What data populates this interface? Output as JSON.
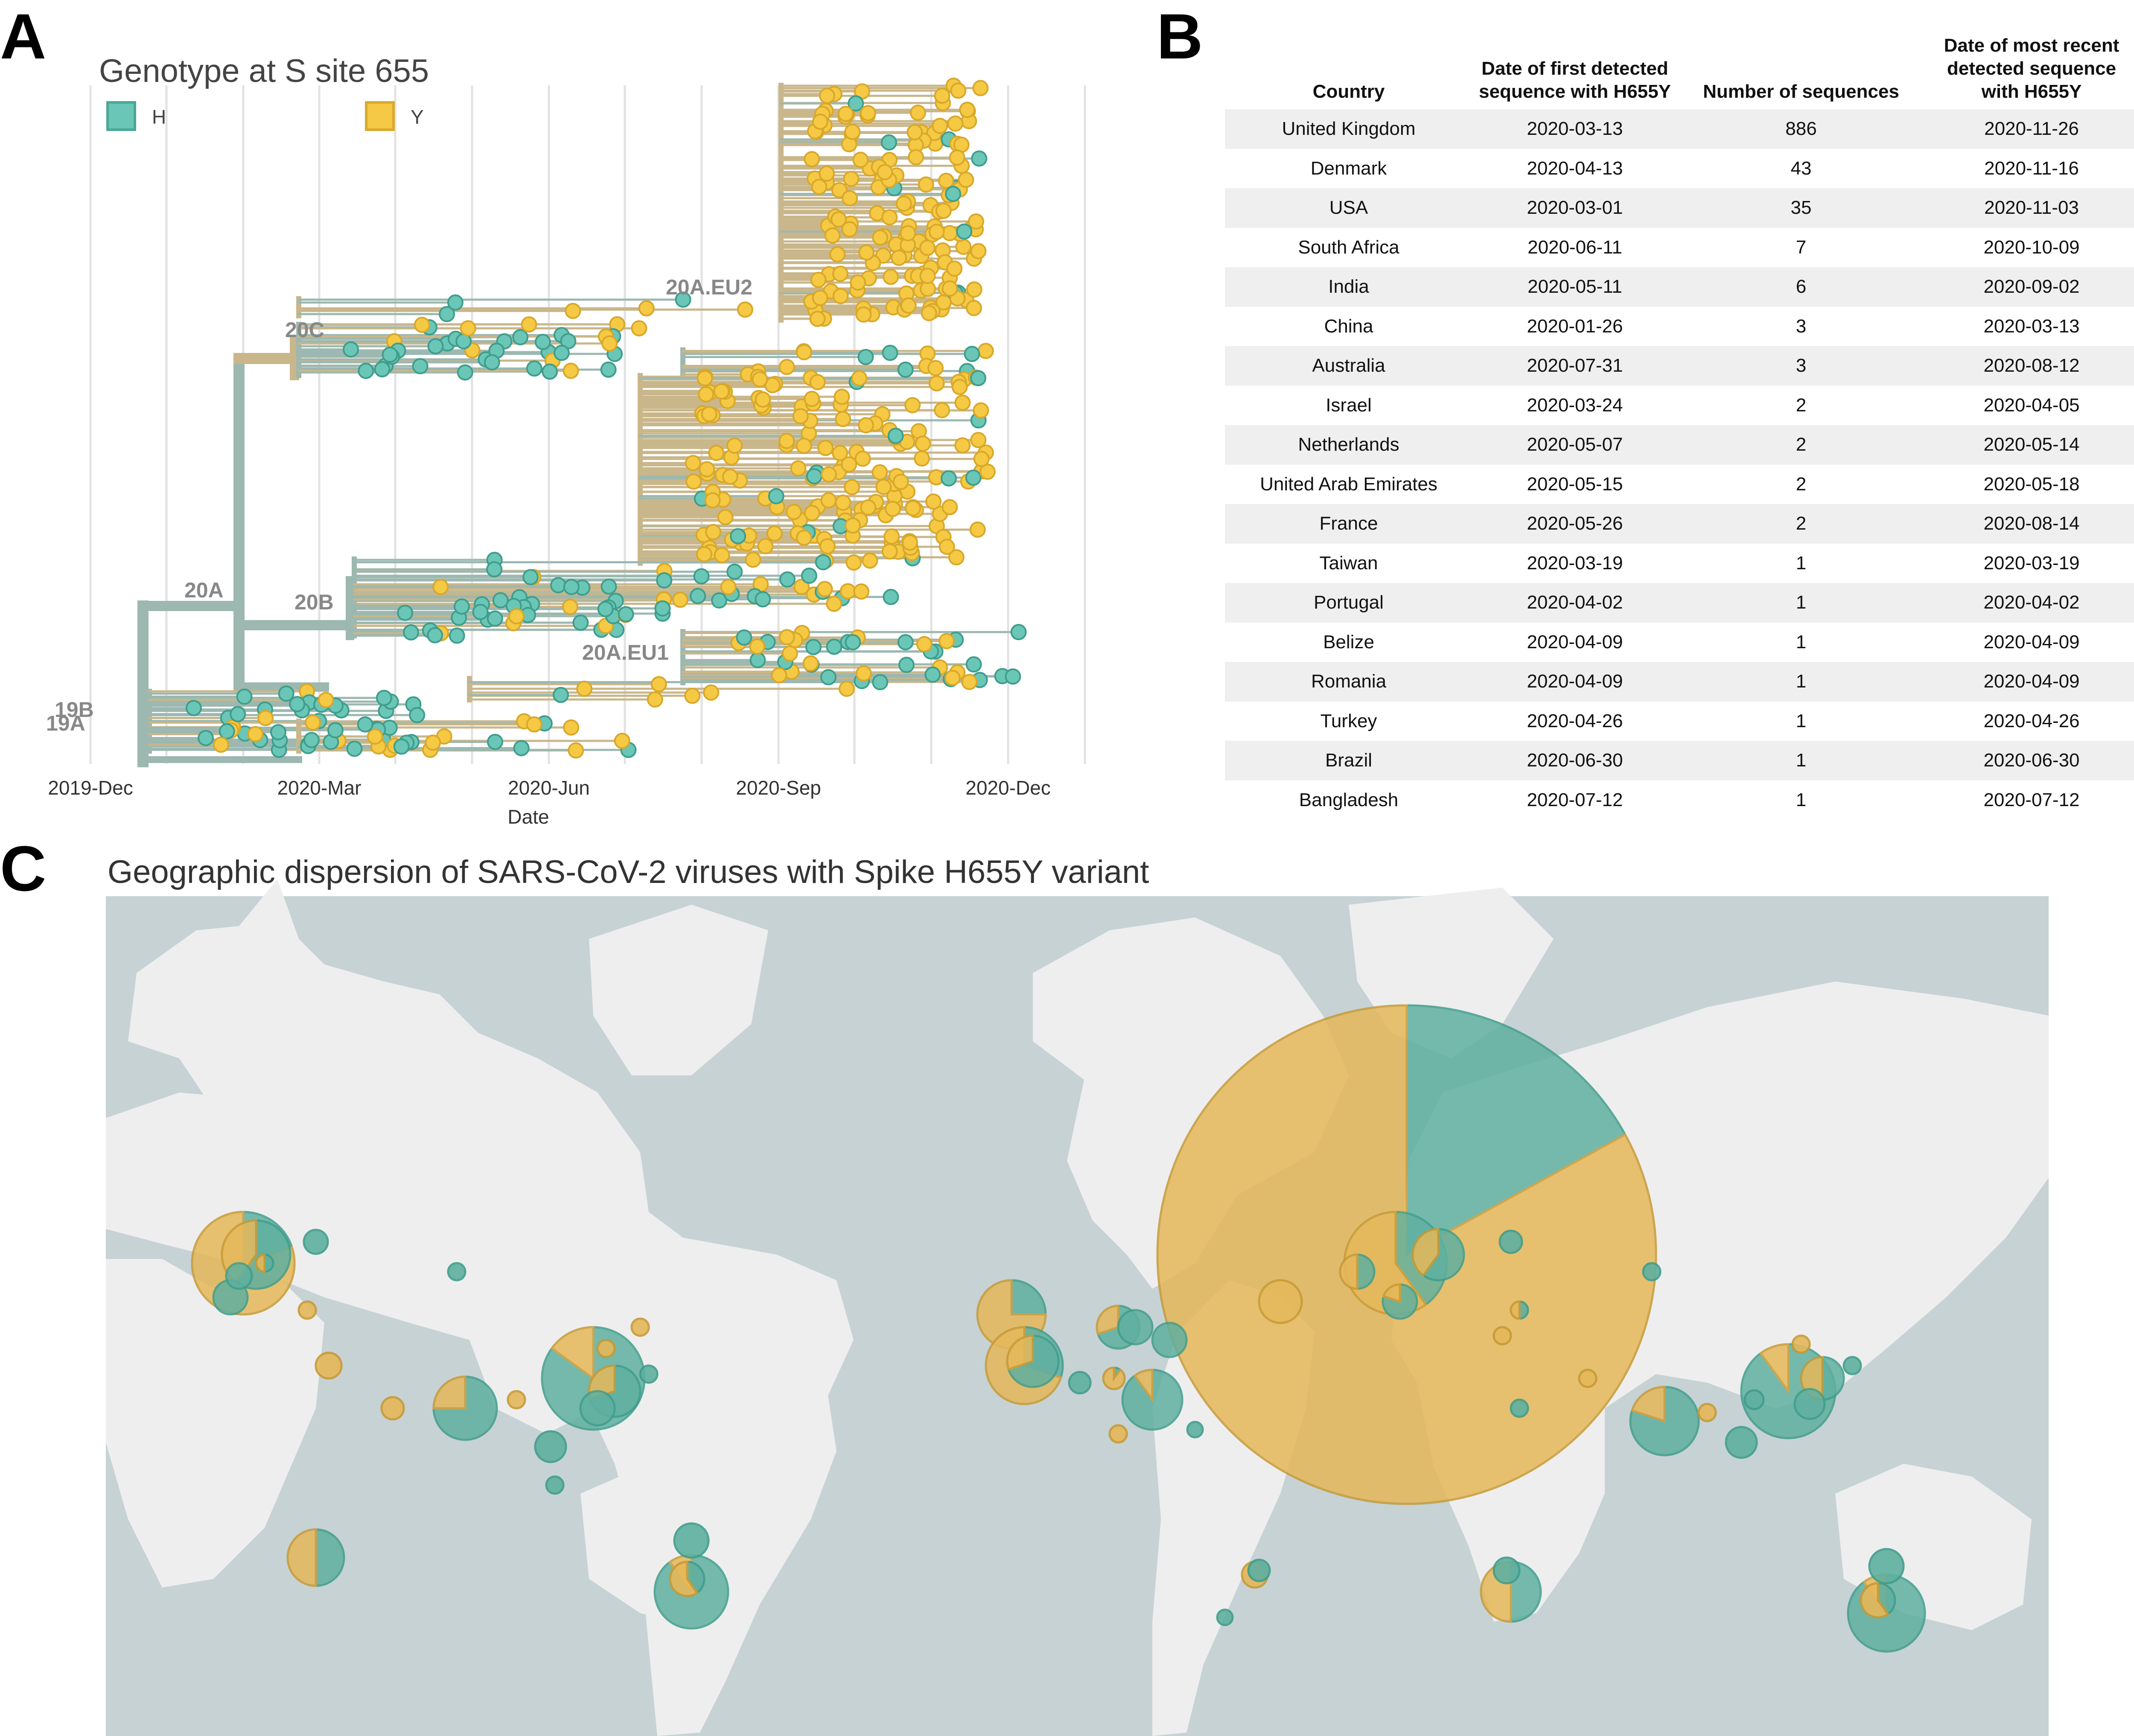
{
  "panel_letters": {
    "a": "A",
    "b": "B",
    "c": "C"
  },
  "colors": {
    "H": "#6ac6b6",
    "Y": "#f6c944",
    "branch_H": "#9cb8b0",
    "branch_Y": "#c9b68a",
    "map_ocean": "#c7d2d5",
    "map_land": "#efefef",
    "map_H": "#5fb0a0",
    "map_Y": "#e5b85a"
  },
  "chart_data": [
    {
      "type": "scatter",
      "subtype": "phylogenetic-tree",
      "title": "Genotype at S site 655",
      "xlabel": "Date",
      "ylabel": "",
      "x_ticks": [
        "2019-Dec",
        "2020-Mar",
        "2020-Jun",
        "2020-Sep",
        "2020-Dec"
      ],
      "xlim": [
        "2019-12-01",
        "2021-01-01"
      ],
      "grid": true,
      "legend_position": "top-left",
      "legend": [
        {
          "label": "H",
          "color_key": "H"
        },
        {
          "label": "Y",
          "color_key": "Y"
        }
      ],
      "clade_labels": [
        "19A",
        "19B",
        "20A",
        "20B",
        "20C",
        "20A.EU1",
        "20A.EU2"
      ]
    },
    {
      "type": "table",
      "columns": [
        "Country",
        "Date of first detected sequence with H655Y",
        "Number of sequences",
        "Date of most recent detected sequence with H655Y"
      ],
      "rows": [
        [
          "United Kingdom",
          "2020-03-13",
          "886",
          "2020-11-26"
        ],
        [
          "Denmark",
          "2020-04-13",
          "43",
          "2020-11-16"
        ],
        [
          "USA",
          "2020-03-01",
          "35",
          "2020-11-03"
        ],
        [
          "South Africa",
          "2020-06-11",
          "7",
          "2020-10-09"
        ],
        [
          "India",
          "2020-05-11",
          "6",
          "2020-09-02"
        ],
        [
          "China",
          "2020-01-26",
          "3",
          "2020-03-13"
        ],
        [
          "Australia",
          "2020-07-31",
          "3",
          "2020-08-12"
        ],
        [
          "Israel",
          "2020-03-24",
          "2",
          "2020-04-05"
        ],
        [
          "Netherlands",
          "2020-05-07",
          "2",
          "2020-05-14"
        ],
        [
          "United Arab Emirates",
          "2020-05-15",
          "2",
          "2020-05-18"
        ],
        [
          "France",
          "2020-05-26",
          "2",
          "2020-08-14"
        ],
        [
          "Taiwan",
          "2020-03-19",
          "1",
          "2020-03-19"
        ],
        [
          "Portugal",
          "2020-04-02",
          "1",
          "2020-04-02"
        ],
        [
          "Belize",
          "2020-04-09",
          "1",
          "2020-04-09"
        ],
        [
          "Romania",
          "2020-04-09",
          "1",
          "2020-04-09"
        ],
        [
          "Turkey",
          "2020-04-26",
          "1",
          "2020-04-26"
        ],
        [
          "Brazil",
          "2020-06-30",
          "1",
          "2020-06-30"
        ],
        [
          "Bangladesh",
          "2020-07-12",
          "1",
          "2020-07-12"
        ]
      ]
    },
    {
      "type": "pie",
      "subtype": "map-pies",
      "title": "Geographic dispersion of SARS-CoV-2 viruses with Spike H655Y variant",
      "legend": []
    }
  ]
}
